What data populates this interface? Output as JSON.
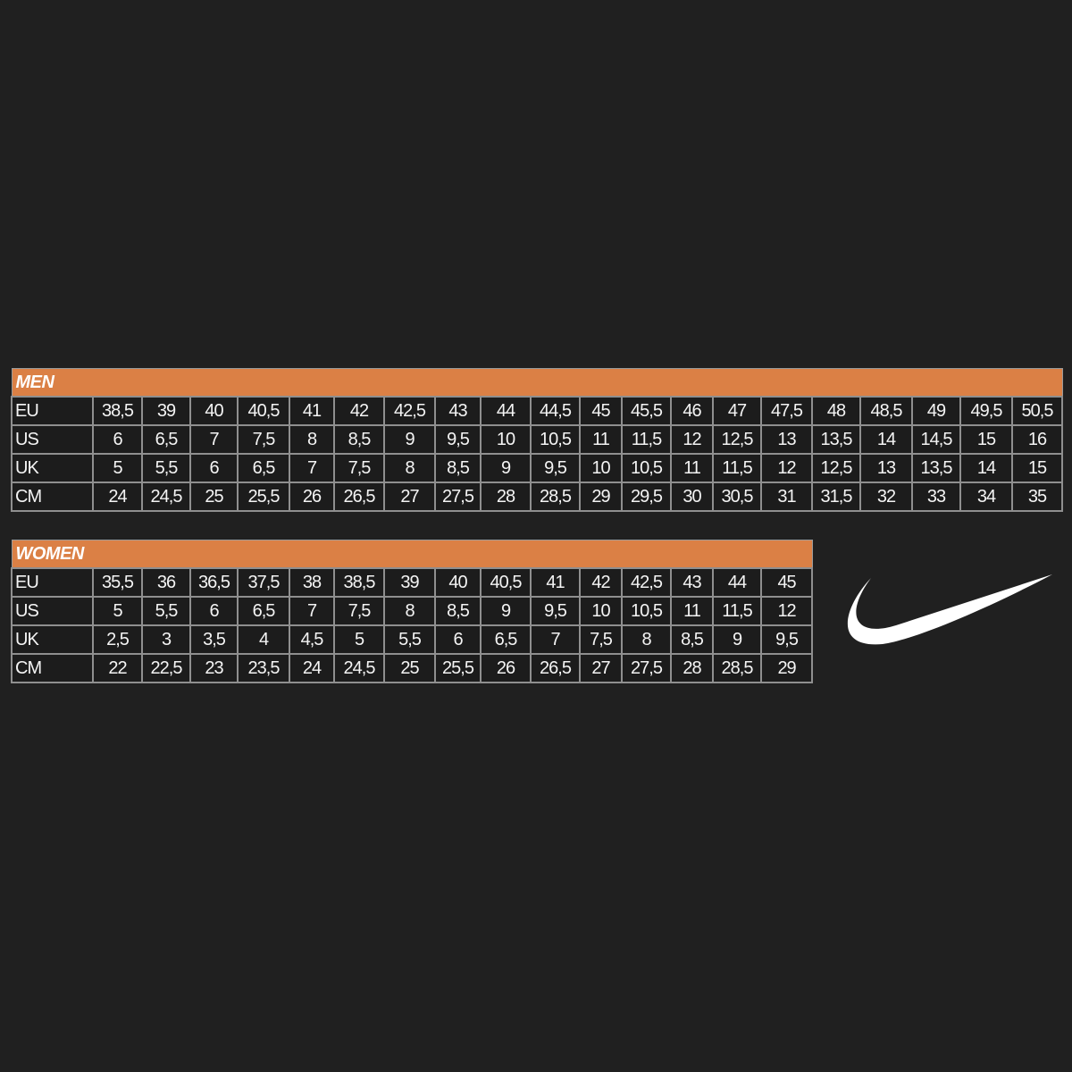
{
  "men": {
    "title": "MEN",
    "rows": [
      {
        "label": "EU",
        "values": [
          "38,5",
          "39",
          "40",
          "40,5",
          "41",
          "42",
          "42,5",
          "43",
          "44",
          "44,5",
          "45",
          "45,5",
          "46",
          "47",
          "47,5",
          "48",
          "48,5",
          "49",
          "49,5",
          "50,5"
        ]
      },
      {
        "label": "US",
        "values": [
          "6",
          "6,5",
          "7",
          "7,5",
          "8",
          "8,5",
          "9",
          "9,5",
          "10",
          "10,5",
          "11",
          "11,5",
          "12",
          "12,5",
          "13",
          "13,5",
          "14",
          "14,5",
          "15",
          "16"
        ]
      },
      {
        "label": "UK",
        "values": [
          "5",
          "5,5",
          "6",
          "6,5",
          "7",
          "7,5",
          "8",
          "8,5",
          "9",
          "9,5",
          "10",
          "10,5",
          "11",
          "11,5",
          "12",
          "12,5",
          "13",
          "13,5",
          "14",
          "15"
        ]
      },
      {
        "label": "CM",
        "values": [
          "24",
          "24,5",
          "25",
          "25,5",
          "26",
          "26,5",
          "27",
          "27,5",
          "28",
          "28,5",
          "29",
          "29,5",
          "30",
          "30,5",
          "31",
          "31,5",
          "32",
          "33",
          "34",
          "35"
        ]
      }
    ]
  },
  "women": {
    "title": "WOMEN",
    "rows": [
      {
        "label": "EU",
        "values": [
          "35,5",
          "36",
          "36,5",
          "37,5",
          "38",
          "38,5",
          "39",
          "40",
          "40,5",
          "41",
          "42",
          "42,5",
          "43",
          "44",
          "45"
        ]
      },
      {
        "label": "US",
        "values": [
          "5",
          "5,5",
          "6",
          "6,5",
          "7",
          "7,5",
          "8",
          "8,5",
          "9",
          "9,5",
          "10",
          "10,5",
          "11",
          "11,5",
          "12"
        ]
      },
      {
        "label": "UK",
        "values": [
          "2,5",
          "3",
          "3,5",
          "4",
          "4,5",
          "5",
          "5,5",
          "6",
          "6,5",
          "7",
          "7,5",
          "8",
          "8,5",
          "9",
          "9,5"
        ]
      },
      {
        "label": "CM",
        "values": [
          "22",
          "22,5",
          "23",
          "23,5",
          "24",
          "24,5",
          "25",
          "25,5",
          "26",
          "26,5",
          "27",
          "27,5",
          "28",
          "28,5",
          "29"
        ]
      }
    ]
  },
  "logo": {
    "name": "swoosh-logo",
    "color": "#ffffff"
  },
  "colors": {
    "header": "#db8045",
    "background": "#202020"
  }
}
